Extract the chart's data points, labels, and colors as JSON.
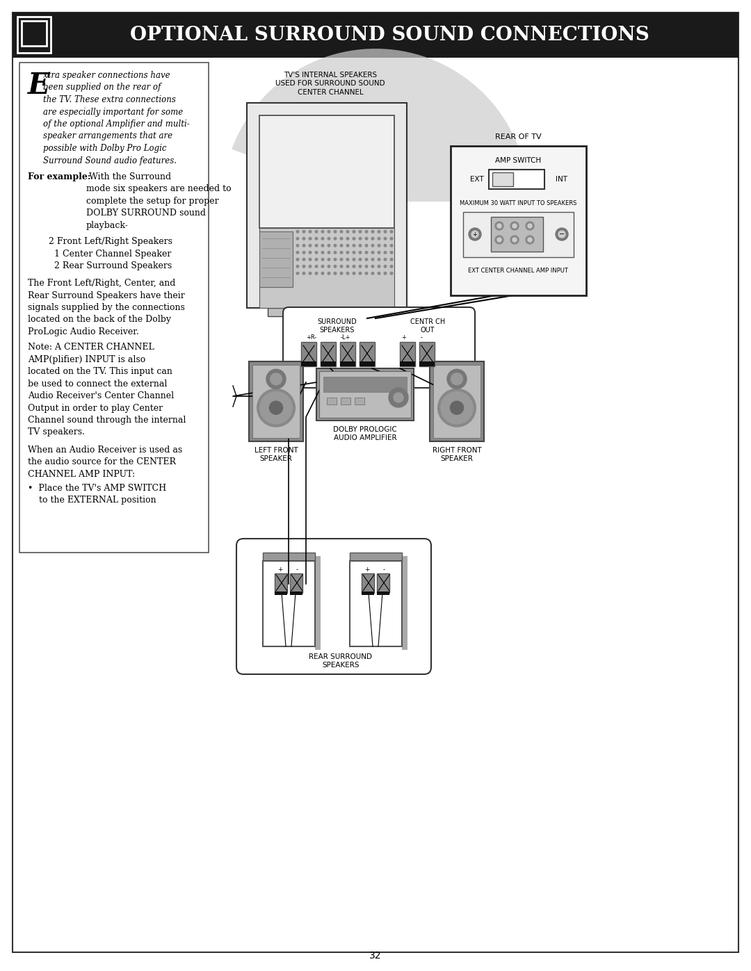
{
  "title": "Optional Surround Sound Connections",
  "page_number": "32",
  "bg_color": "#ffffff",
  "header_bg": "#1a1a1a",
  "header_text_color": "#ffffff",
  "diagram": {
    "tv_label": "TV'S INTERNAL SPEAKERS\nUSED FOR SURROUND SOUND\nCENTER CHANNEL",
    "rear_of_tv": "REAR OF TV",
    "amp_switch": "AMP SWITCH",
    "ext": "EXT",
    "int": "INT",
    "max_watt": "MAXIMUM 30 WATT INPUT TO SPEAKERS",
    "ext_center": "EXT CENTER CHANNEL AMP INPUT",
    "surround_speakers": "SURROUND\nSPEAKERS",
    "center_out": "CENTR CH\nOUT",
    "left_front_label": "LEFT FRONT\nSPEAKER",
    "dolby_label": "DOLBY PROLOGIC\nAUDIO AMPLIFIER",
    "right_front_label": "RIGHT FRONT\nSPEAKER",
    "rear_surround_label": "REAR SURROUND\nSPEAKERS"
  }
}
